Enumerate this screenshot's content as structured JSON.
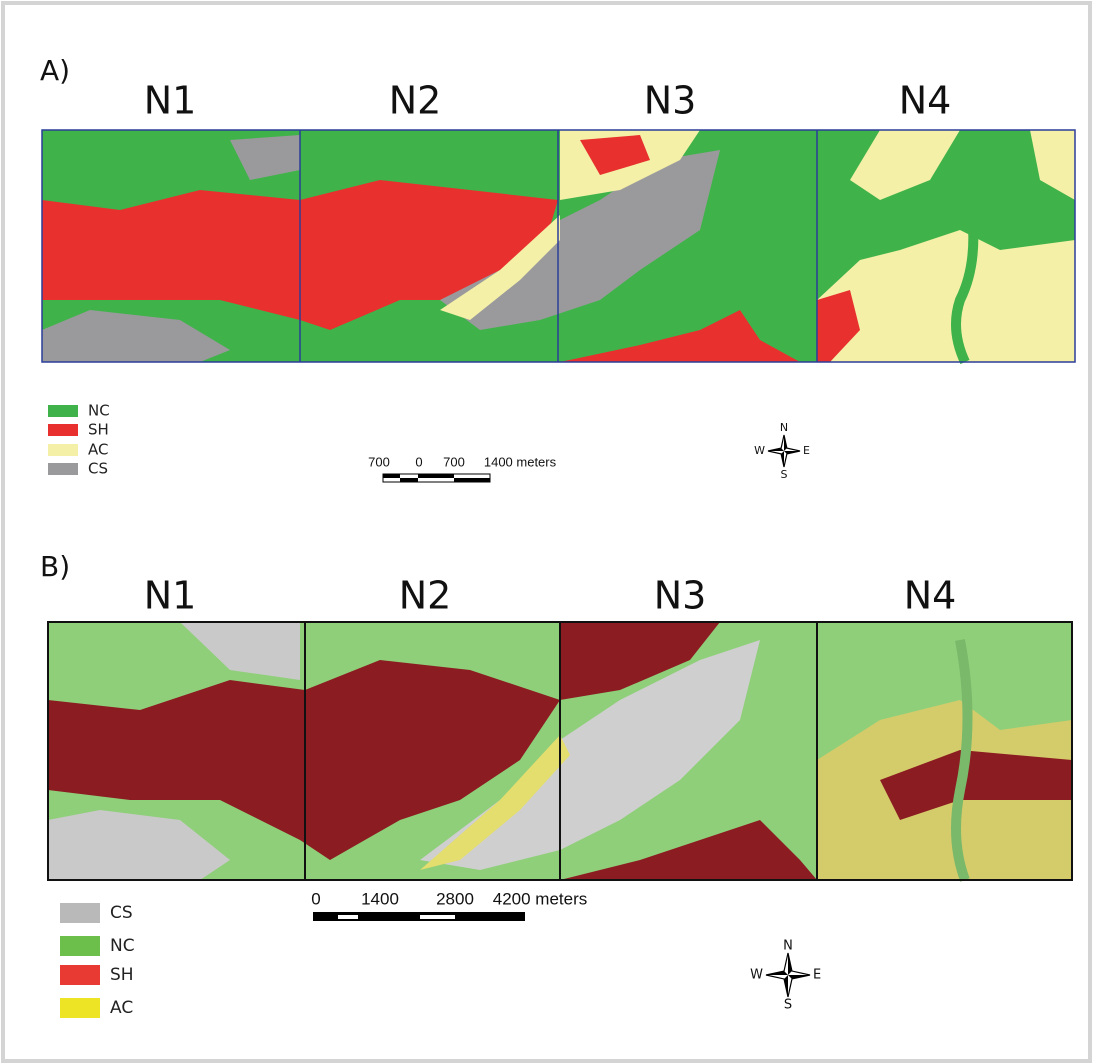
{
  "panel_a": {
    "label": "A)",
    "zones": [
      "N1",
      "N2",
      "N3",
      "N4"
    ],
    "legend": [
      {
        "label": "NC",
        "color": "#3fb34a"
      },
      {
        "label": "SH",
        "color": "#e8312e"
      },
      {
        "label": "AC",
        "color": "#f5f0a8"
      },
      {
        "label": "CS",
        "color": "#9a9a9c"
      }
    ],
    "scale_labels": [
      "700",
      "0",
      "700",
      "1400 meters"
    ],
    "compass": [
      "N",
      "E",
      "S",
      "W"
    ]
  },
  "panel_b": {
    "label": "B)",
    "zones": [
      "N1",
      "N2",
      "N3",
      "N4"
    ],
    "legend": [
      {
        "label": "CS",
        "color": "#b9b9b9"
      },
      {
        "label": "NC",
        "color": "#6cbf4a"
      },
      {
        "label": "SH",
        "color": "#e83a32"
      },
      {
        "label": "AC",
        "color": "#ece425"
      }
    ],
    "scale_labels": [
      "0",
      "1400",
      "2800",
      "4200 meters"
    ],
    "compass": [
      "N",
      "E",
      "S",
      "W"
    ]
  }
}
